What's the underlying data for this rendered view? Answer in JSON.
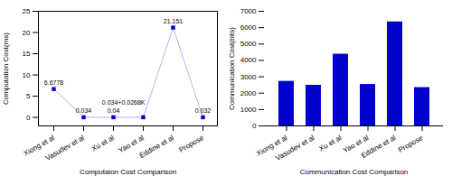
{
  "chart_data": [
    {
      "type": "line",
      "categories": [
        "Xiong et al",
        "Vasudev et al",
        "Xu et al",
        "Yao et al",
        "Eddine et al",
        "Propose"
      ],
      "values": [
        6.6778,
        0.034,
        0.04,
        0.034,
        21.151,
        0.032
      ],
      "annotations": [
        "6.6778",
        "0.034",
        "0.04",
        "0.034+0.0268K",
        "21.151",
        "0.032"
      ],
      "xlabel": "Computaion Cost Comparison",
      "ylabel": "Computation Cost(ms)",
      "ylim": [
        -2,
        25
      ],
      "yticks": [
        0,
        5,
        10,
        15,
        20,
        25
      ],
      "color": "#0000cd",
      "marker": "square",
      "grid": false
    },
    {
      "type": "bar",
      "categories": [
        "Xiong et al",
        "Vasudev et al",
        "Xu et al",
        "Yao et al",
        "Eddine et al",
        "Propose"
      ],
      "values": [
        2720,
        2480,
        4380,
        2530,
        6350,
        2340
      ],
      "xlabel": "Communication Cost Comparison",
      "ylabel": "Communication Cost(bits)",
      "ylim": [
        0,
        7000
      ],
      "yticks": [
        0,
        1000,
        2000,
        3000,
        4000,
        5000,
        6000,
        7000
      ],
      "color": "#0000cd",
      "grid": false
    }
  ]
}
